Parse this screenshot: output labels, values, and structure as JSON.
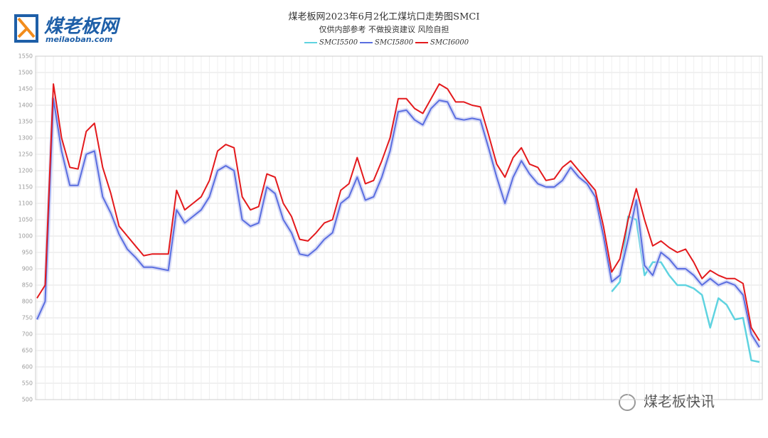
{
  "logo": {
    "name": "煤老板网",
    "site": "meilaoban.com"
  },
  "badge": "煤老板快讯",
  "chart_data": {
    "type": "line",
    "title": "煤老板网2023年6月2化工煤坑口走势图SMCI",
    "subtitle": "仅供内部参考 不做投资建议 风险自担",
    "categories": [
      null,
      null,
      null,
      null,
      null,
      null,
      null,
      null,
      null,
      null,
      null,
      null,
      null,
      null,
      null,
      null,
      null,
      null,
      null,
      null,
      null,
      null,
      null,
      null,
      null,
      null,
      null,
      null,
      null,
      null,
      null,
      null,
      null,
      null,
      null,
      null,
      null,
      null,
      null,
      null,
      null,
      null,
      null,
      null,
      null,
      null,
      null,
      null,
      null,
      null,
      null,
      null,
      null,
      null,
      null,
      null,
      null,
      null,
      null,
      null,
      null,
      null,
      null,
      null,
      null,
      null,
      null,
      null,
      null,
      null,
      null,
      null,
      null,
      null,
      null,
      null,
      null,
      null,
      null,
      null,
      null,
      null,
      null,
      null,
      null,
      null,
      null,
      null,
      null
    ],
    "series": [
      {
        "name": "SMCI5500",
        "color": "#5fd3e0",
        "values": [
          null,
          null,
          null,
          null,
          null,
          null,
          null,
          null,
          null,
          null,
          null,
          null,
          null,
          null,
          null,
          null,
          null,
          null,
          null,
          null,
          null,
          null,
          null,
          null,
          null,
          null,
          null,
          null,
          null,
          null,
          null,
          null,
          null,
          null,
          null,
          null,
          null,
          null,
          null,
          null,
          null,
          null,
          null,
          null,
          null,
          null,
          null,
          null,
          null,
          null,
          null,
          null,
          null,
          null,
          null,
          null,
          null,
          null,
          null,
          null,
          null,
          null,
          null,
          null,
          null,
          null,
          null,
          null,
          null,
          null,
          830,
          860,
          1060,
          1050,
          880,
          920,
          920,
          880,
          850,
          850,
          840,
          820,
          720,
          810,
          790,
          745,
          750,
          620,
          615
        ]
      },
      {
        "name": "SMCI5800",
        "color": "#5a6ee0",
        "values": [
          745,
          800,
          1420,
          1260,
          1155,
          1155,
          1250,
          1260,
          1120,
          1070,
          1005,
          960,
          935,
          905,
          905,
          900,
          895,
          1080,
          1040,
          1060,
          1080,
          1120,
          1200,
          1215,
          1200,
          1050,
          1030,
          1040,
          1150,
          1130,
          1050,
          1010,
          945,
          940,
          960,
          990,
          1010,
          1100,
          1120,
          1180,
          1110,
          1120,
          1180,
          1260,
          1380,
          1385,
          1355,
          1340,
          1390,
          1415,
          1410,
          1360,
          1355,
          1360,
          1355,
          1270,
          1180,
          1100,
          1180,
          1230,
          1190,
          1160,
          1150,
          1150,
          1170,
          1210,
          1180,
          1160,
          1120,
          1000,
          860,
          880,
          990,
          1110,
          910,
          880,
          950,
          930,
          900,
          900,
          880,
          850,
          870,
          850,
          860,
          850,
          820,
          700,
          660
        ]
      },
      {
        "name": "SMCI6000",
        "color": "#e3191c",
        "values": [
          810,
          850,
          1465,
          1300,
          1210,
          1205,
          1320,
          1345,
          1210,
          1130,
          1030,
          1000,
          970,
          940,
          945,
          945,
          945,
          1140,
          1080,
          1100,
          1120,
          1170,
          1260,
          1280,
          1270,
          1120,
          1080,
          1090,
          1190,
          1180,
          1100,
          1060,
          990,
          985,
          1010,
          1040,
          1050,
          1140,
          1160,
          1240,
          1160,
          1170,
          1230,
          1300,
          1420,
          1420,
          1390,
          1375,
          1420,
          1465,
          1450,
          1410,
          1410,
          1400,
          1395,
          1310,
          1220,
          1180,
          1240,
          1270,
          1220,
          1210,
          1170,
          1175,
          1210,
          1230,
          1200,
          1170,
          1140,
          1030,
          890,
          930,
          1050,
          1145,
          1050,
          970,
          985,
          965,
          950,
          960,
          920,
          870,
          895,
          880,
          870,
          870,
          855,
          720,
          680
        ]
      }
    ],
    "ylim": [
      500,
      1550
    ],
    "yticks": [
      500,
      550,
      600,
      650,
      700,
      750,
      800,
      850,
      900,
      950,
      1000,
      1050,
      1100,
      1150,
      1200,
      1250,
      1300,
      1350,
      1400,
      1450,
      1500,
      1550
    ],
    "grid": true
  }
}
